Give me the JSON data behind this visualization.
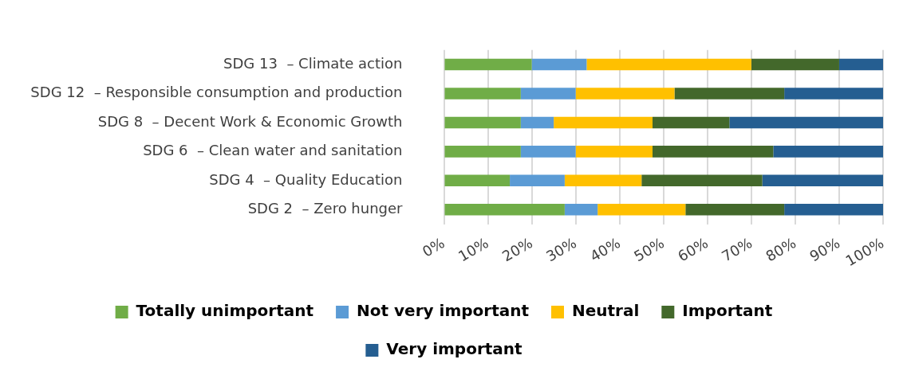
{
  "chart_data": {
    "type": "bar",
    "orientation": "horizontal",
    "stacked": true,
    "categories": [
      "SDG 13  – Climate action",
      "SDG 12  – Responsible consumption and production",
      "SDG 8  – Decent Work & Economic Growth",
      "SDG 6  – Clean water and sanitation",
      "SDG 4  – Quality Education",
      "SDG 2  – Zero hunger"
    ],
    "series": [
      {
        "name": "Totally unimportant",
        "color": "#70ad47",
        "values": [
          20,
          17.5,
          17.5,
          17.5,
          15,
          27.5
        ]
      },
      {
        "name": "Not very important",
        "color": "#5b9bd5",
        "values": [
          12.5,
          12.5,
          7.5,
          12.5,
          12.5,
          7.5
        ]
      },
      {
        "name": "Neutral",
        "color": "#ffc000",
        "values": [
          37.5,
          22.5,
          22.5,
          17.5,
          17.5,
          20
        ]
      },
      {
        "name": "Important",
        "color": "#43682b",
        "values": [
          20,
          25,
          17.5,
          27.5,
          27.5,
          22.5
        ]
      },
      {
        "name": "Very important",
        "color": "#255e91",
        "values": [
          10,
          22.5,
          35,
          25,
          27.5,
          22.5
        ]
      }
    ],
    "xlim": [
      0,
      100
    ],
    "xticks": [
      {
        "value": 0,
        "label": "0%"
      },
      {
        "value": 10,
        "label": "10%"
      },
      {
        "value": 20,
        "label": "20%"
      },
      {
        "value": 30,
        "label": "30%"
      },
      {
        "value": 40,
        "label": "40%"
      },
      {
        "value": 50,
        "label": "50%"
      },
      {
        "value": 60,
        "label": "60%"
      },
      {
        "value": 70,
        "label": "70%"
      },
      {
        "value": 80,
        "label": "80%"
      },
      {
        "value": 90,
        "label": "90%"
      },
      {
        "value": 100,
        "label": "100%"
      }
    ],
    "grid": "x",
    "legend": "bottom"
  }
}
